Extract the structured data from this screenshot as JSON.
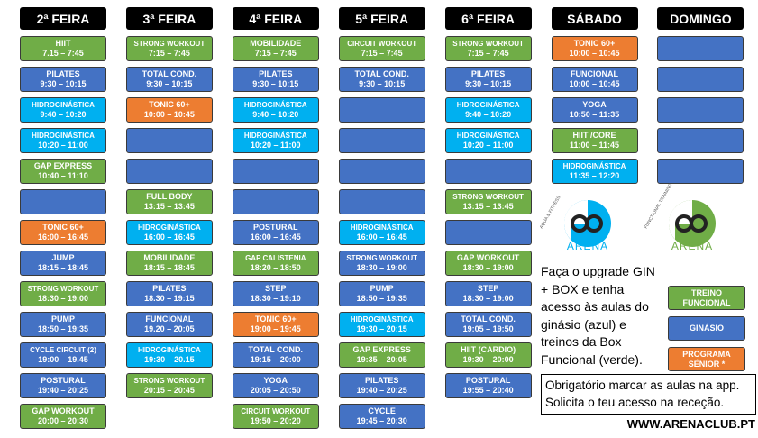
{
  "schedule": {
    "days": [
      {
        "name": "2ª FEIRA",
        "classes": [
          {
            "name": "HIIT",
            "time": "7.15 – 7:45",
            "color": "#70ad47"
          },
          {
            "name": "PILATES",
            "time": "9:30 – 10:15",
            "color": "#4472c4"
          },
          {
            "name": "HIDROGINÁSTICA",
            "time": "9:40 – 10:20",
            "color": "#00b0f0"
          },
          {
            "name": "HIDROGINÁSTICA",
            "time": "10:20 – 11:00",
            "color": "#00b0f0"
          },
          {
            "name": "GAP EXPRESS",
            "time": "10:40 – 11:10",
            "color": "#70ad47"
          },
          {
            "color": "#4472c4"
          },
          {
            "name": "TONIC 60+",
            "time": "16:00 – 16:45",
            "color": "#ed7d31"
          },
          {
            "name": "JUMP",
            "time": "18:15 – 18:45",
            "color": "#4472c4"
          },
          {
            "name": "STRONG WORKOUT",
            "time": "18:30 – 19:00",
            "color": "#70ad47"
          },
          {
            "name": "PUMP",
            "time": "18:50 – 19:35",
            "color": "#4472c4"
          },
          {
            "name": "CYCLE CIRCUIT (2)",
            "time": "19:00 – 19.45",
            "color": "#4472c4"
          },
          {
            "name": "POSTURAL",
            "time": "19:40 – 20:25",
            "color": "#4472c4"
          },
          {
            "name": "GAP WORKOUT",
            "time": "20:00 – 20:30",
            "color": "#70ad47"
          }
        ]
      },
      {
        "name": "3ª FEIRA",
        "classes": [
          {
            "name": "STRONG WORKOUT",
            "time": "7:15 – 7:45",
            "color": "#70ad47"
          },
          {
            "name": "TOTAL COND.",
            "time": "9:30 – 10:15",
            "color": "#4472c4"
          },
          {
            "name": "TONIC 60+",
            "time": "10:00 – 10:45",
            "color": "#ed7d31"
          },
          {
            "color": "#4472c4"
          },
          {
            "color": "#4472c4"
          },
          {
            "name": "FULL BODY",
            "time": "13:15 – 13:45",
            "color": "#70ad47"
          },
          {
            "name": "HIDROGINÁSTICA",
            "time": "16:00 – 16:45",
            "color": "#00b0f0"
          },
          {
            "name": "MOBILIDADE",
            "time": "18:15 – 18:45",
            "color": "#70ad47"
          },
          {
            "name": "PILATES",
            "time": "18.30 – 19:15",
            "color": "#4472c4"
          },
          {
            "name": "FUNCIONAL",
            "time": "19.20 – 20:05",
            "color": "#4472c4"
          },
          {
            "name": "HIDROGINÁSTICA",
            "time": "19:30 – 20.15",
            "color": "#00b0f0"
          },
          {
            "name": "STRONG WORKOUT",
            "time": "20:15 – 20:45",
            "color": "#70ad47"
          }
        ]
      },
      {
        "name": "4ª FEIRA",
        "classes": [
          {
            "name": "MOBILIDADE",
            "time": "7:15 – 7:45",
            "color": "#70ad47"
          },
          {
            "name": "PILATES",
            "time": "9:30 – 10:15",
            "color": "#4472c4"
          },
          {
            "name": "HIDROGINÁSTICA",
            "time": "9:40 – 10:20",
            "color": "#00b0f0"
          },
          {
            "name": "HIDROGINÁSTICA",
            "time": "10:20 – 11:00",
            "color": "#00b0f0"
          },
          {
            "color": "#4472c4"
          },
          {
            "color": "#4472c4"
          },
          {
            "name": "POSTURAL",
            "time": "16:00 – 16:45",
            "color": "#4472c4"
          },
          {
            "name": "GAP  CALISTENIA",
            "time": "18:20 – 18:50",
            "color": "#70ad47"
          },
          {
            "name": "STEP",
            "time": "18:30 – 19:10",
            "color": "#4472c4"
          },
          {
            "name": "TONIC 60+",
            "time": "19:00 – 19:45",
            "color": "#ed7d31"
          },
          {
            "name": "TOTAL COND.",
            "time": "19:15 – 20:00",
            "color": "#4472c4"
          },
          {
            "name": "YOGA",
            "time": "20:05 – 20:50",
            "color": "#4472c4"
          },
          {
            "name": "CIRCUIT WORKOUT",
            "time": "19:50 – 20:20",
            "color": "#70ad47"
          }
        ]
      },
      {
        "name": "5ª FEIRA",
        "classes": [
          {
            "name": "CIRCUIT WORKOUT",
            "time": "7:15 – 7:45",
            "color": "#70ad47"
          },
          {
            "name": "TOTAL COND.",
            "time": "9:30 – 10:15",
            "color": "#4472c4"
          },
          {
            "color": "#4472c4"
          },
          {
            "color": "#4472c4"
          },
          {
            "color": "#4472c4"
          },
          {
            "color": "#4472c4"
          },
          {
            "name": "HIDROGINÁSTICA",
            "time": "16:00 – 16:45",
            "color": "#00b0f0"
          },
          {
            "name": "STRONG WORKOUT",
            "time": "18:30 – 19:00",
            "color": "#4472c4"
          },
          {
            "name": "PUMP",
            "time": "18:50 – 19:35",
            "color": "#4472c4"
          },
          {
            "name": "HIDROGINÁSTICA",
            "time": "19:30 – 20:15",
            "color": "#00b0f0"
          },
          {
            "name": "GAP EXPRESS",
            "time": "19:35 – 20:05",
            "color": "#70ad47"
          },
          {
            "name": "PILATES",
            "time": "19:40 – 20:25",
            "color": "#4472c4"
          },
          {
            "name": "CYCLE",
            "time": "19:45 – 20:30",
            "color": "#4472c4"
          }
        ]
      },
      {
        "name": "6ª FEIRA",
        "classes": [
          {
            "name": "STRONG WORKOUT",
            "time": "7:15 – 7:45",
            "color": "#70ad47"
          },
          {
            "name": "PILATES",
            "time": "9:30 – 10:15",
            "color": "#4472c4"
          },
          {
            "name": "HIDROGINÁSTICA",
            "time": "9:40 – 10:20",
            "color": "#00b0f0"
          },
          {
            "name": "HIDROGINÁSTICA",
            "time": "10:20 – 11:00",
            "color": "#00b0f0"
          },
          {
            "color": "#4472c4"
          },
          {
            "name": "STRONG WORKOUT",
            "time": "13:15 – 13:45",
            "color": "#70ad47"
          },
          {
            "color": "#4472c4"
          },
          {
            "name": "GAP WORKOUT",
            "time": "18:30 – 19:00",
            "color": "#70ad47"
          },
          {
            "name": "STEP",
            "time": "18:30 – 19:00",
            "color": "#4472c4"
          },
          {
            "name": "TOTAL COND.",
            "time": "19:05 – 19:50",
            "color": "#4472c4"
          },
          {
            "name": "HIIT (CARDIO)",
            "time": "19:30 – 20:00",
            "color": "#70ad47"
          },
          {
            "name": "POSTURAL",
            "time": "19:55 – 20:40",
            "color": "#4472c4"
          }
        ]
      },
      {
        "name": "SÁBADO",
        "classes": [
          {
            "name": "TONIC 60+",
            "time": "10:00 – 10:45",
            "color": "#ed7d31"
          },
          {
            "name": "FUNCIONAL",
            "time": "10:00 – 10:45",
            "color": "#4472c4"
          },
          {
            "name": "YOGA",
            "time": "10:50 – 11:35",
            "color": "#4472c4"
          },
          {
            "name": "HIIT /CORE",
            "time": "11:00 – 11:45",
            "color": "#70ad47"
          },
          {
            "name": "HIDROGINÁSTICA",
            "time": "11:35 – 12:20",
            "color": "#00b0f0"
          }
        ]
      },
      {
        "name": "DOMINGO",
        "classes": [
          {
            "color": "#4472c4"
          },
          {
            "color": "#4472c4"
          },
          {
            "color": "#4472c4"
          },
          {
            "color": "#4472c4"
          },
          {
            "color": "#4472c4"
          }
        ]
      }
    ]
  },
  "logos": [
    {
      "tagline": "AQUA & FITNESS",
      "brand": "ARENA",
      "color": "#00b0f0"
    },
    {
      "tagline": "FUNCTIONAL TRAINING",
      "brand": "ARENA",
      "color": "#70ad47"
    }
  ],
  "upgrade": {
    "lines": [
      "Faça o upgrade GIN",
      "+ BOX e tenha",
      "acesso às aulas do",
      "ginásio (azul) e",
      "treinos da Box",
      "Funcional (verde)."
    ]
  },
  "legend": [
    {
      "label": "TREINO FUNCIONAL",
      "color": "#70ad47"
    },
    {
      "label": "GINÁSIO",
      "color": "#4472c4"
    },
    {
      "label": "PROGRAMA SÉNIOR *",
      "color": "#ed7d31"
    }
  ],
  "notice": {
    "lines": [
      "Obrigatório marcar as aulas na app.",
      "Solicita o teu acesso na receção."
    ]
  },
  "website": "WWW.ARENACLUB.PT"
}
